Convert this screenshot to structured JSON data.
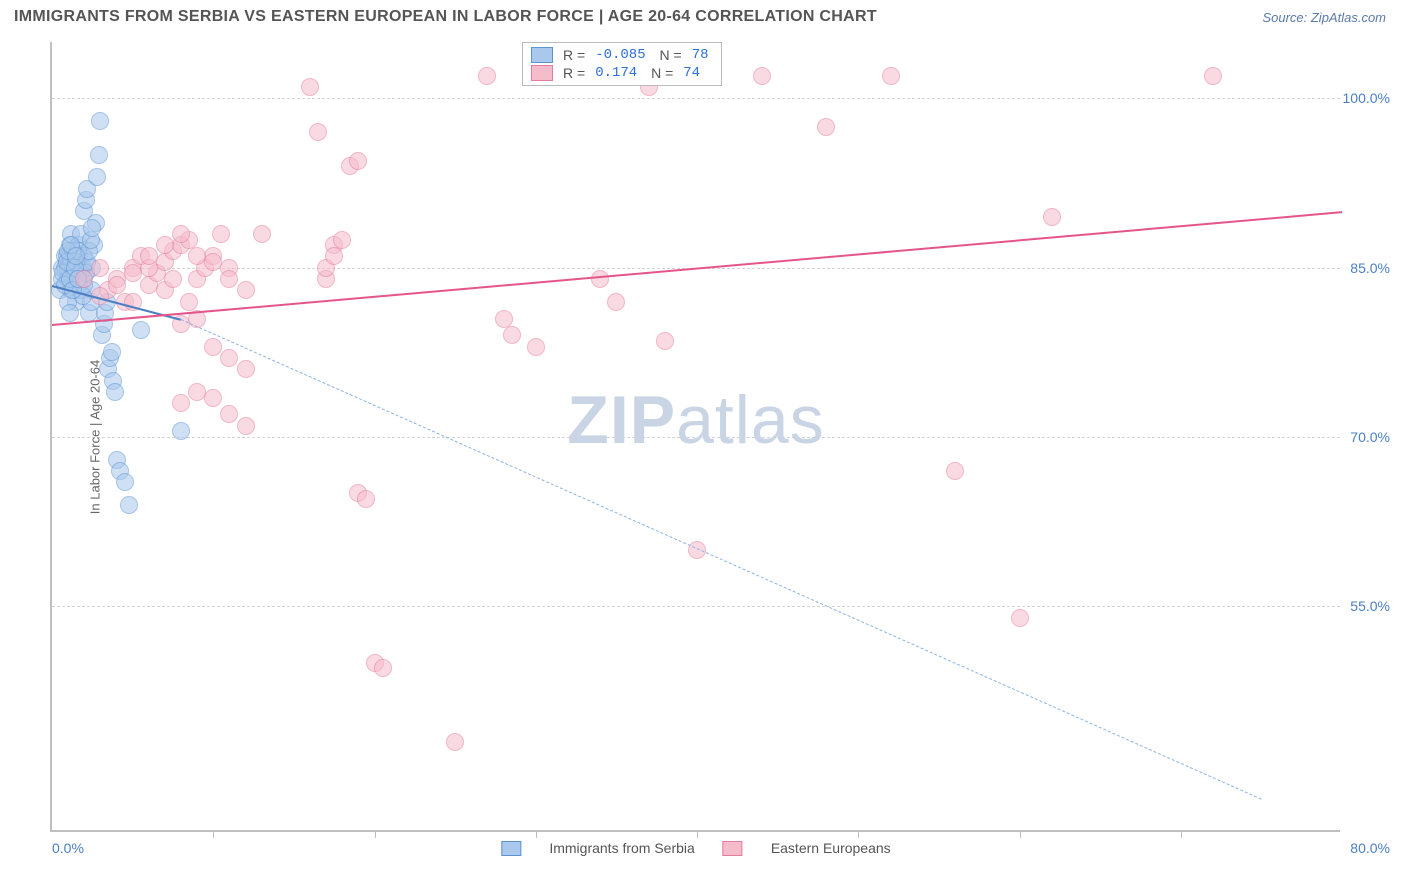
{
  "title": "IMMIGRANTS FROM SERBIA VS EASTERN EUROPEAN IN LABOR FORCE | AGE 20-64 CORRELATION CHART",
  "source": "Source: ZipAtlas.com",
  "watermark_a": "ZIP",
  "watermark_b": "atlas",
  "chart": {
    "type": "scatter",
    "ylabel": "In Labor Force | Age 20-64",
    "xlim": [
      0,
      80
    ],
    "ylim": [
      35,
      105
    ],
    "xlim_labels": [
      "0.0%",
      "80.0%"
    ],
    "yticks": [
      55.0,
      70.0,
      85.0,
      100.0
    ],
    "ytick_labels": [
      "55.0%",
      "70.0%",
      "85.0%",
      "100.0%"
    ],
    "xtick_positions": [
      10,
      20,
      30,
      40,
      50,
      60,
      70
    ],
    "background_color": "#ffffff",
    "grid_color": "#d4d4d4",
    "border_color": "#bfbfbf",
    "point_radius": 9,
    "point_opacity": 0.55,
    "series": [
      {
        "name": "Immigrants from Serbia",
        "color_fill": "#a9c8ec",
        "color_stroke": "#5b93d4",
        "R": "-0.085",
        "N": "78",
        "trend": {
          "x1": 0,
          "y1": 83.5,
          "x2": 8,
          "y2": 80.5,
          "width": 2.5,
          "dashed": false,
          "color": "#4a7fc4"
        },
        "trend_ext": {
          "x1": 8,
          "y1": 80.5,
          "x2": 75,
          "y2": 38,
          "width": 1.5,
          "dashed": true,
          "color": "#8fb2df"
        },
        "points": [
          [
            0.5,
            83
          ],
          [
            0.6,
            84
          ],
          [
            0.6,
            85
          ],
          [
            0.8,
            85
          ],
          [
            0.8,
            86
          ],
          [
            0.9,
            86
          ],
          [
            1.0,
            84
          ],
          [
            1.0,
            85
          ],
          [
            1.1,
            86
          ],
          [
            1.1,
            87
          ],
          [
            1.2,
            88
          ],
          [
            1.2,
            83
          ],
          [
            1.3,
            84
          ],
          [
            1.3,
            85
          ],
          [
            1.4,
            86
          ],
          [
            1.5,
            82
          ],
          [
            1.5,
            84
          ],
          [
            1.6,
            85
          ],
          [
            1.7,
            86
          ],
          [
            1.7,
            87
          ],
          [
            1.8,
            88
          ],
          [
            1.8,
            83
          ],
          [
            1.9,
            84
          ],
          [
            1.9,
            85
          ],
          [
            2.0,
            86
          ],
          [
            2.0,
            90
          ],
          [
            2.1,
            91
          ],
          [
            2.2,
            92
          ],
          [
            2.3,
            81
          ],
          [
            2.4,
            82
          ],
          [
            2.5,
            83
          ],
          [
            2.5,
            85
          ],
          [
            2.6,
            87
          ],
          [
            2.7,
            89
          ],
          [
            2.8,
            93
          ],
          [
            2.9,
            95
          ],
          [
            3.0,
            98
          ],
          [
            3.1,
            79
          ],
          [
            3.2,
            80
          ],
          [
            3.3,
            81
          ],
          [
            3.4,
            82
          ],
          [
            3.5,
            76
          ],
          [
            3.6,
            77
          ],
          [
            3.7,
            77.5
          ],
          [
            3.8,
            75
          ],
          [
            3.9,
            74
          ],
          [
            4.0,
            68
          ],
          [
            4.2,
            67
          ],
          [
            4.5,
            66
          ],
          [
            4.8,
            64
          ],
          [
            1.0,
            82
          ],
          [
            1.1,
            81
          ],
          [
            1.2,
            85.5
          ],
          [
            1.3,
            86.5
          ],
          [
            1.4,
            84.5
          ],
          [
            1.5,
            85.5
          ],
          [
            1.6,
            86.5
          ],
          [
            1.7,
            83.5
          ],
          [
            1.8,
            84.5
          ],
          [
            1.9,
            82.5
          ],
          [
            2.0,
            83.5
          ],
          [
            2.1,
            84.5
          ],
          [
            2.2,
            85.5
          ],
          [
            2.3,
            86.5
          ],
          [
            2.4,
            87.5
          ],
          [
            2.5,
            88.5
          ],
          [
            0.7,
            84.5
          ],
          [
            0.8,
            83.5
          ],
          [
            0.9,
            85.5
          ],
          [
            1.0,
            86.5
          ],
          [
            1.1,
            84
          ],
          [
            1.2,
            87
          ],
          [
            1.3,
            83
          ],
          [
            1.4,
            85
          ],
          [
            1.5,
            86
          ],
          [
            1.6,
            84
          ],
          [
            8.0,
            70.5
          ],
          [
            5.5,
            79.5
          ]
        ]
      },
      {
        "name": "Eastern Europeans",
        "color_fill": "#f5bccc",
        "color_stroke": "#e67ba0",
        "R": "0.174",
        "N": "74",
        "trend": {
          "x1": 0,
          "y1": 80,
          "x2": 80,
          "y2": 90,
          "width": 2.5,
          "dashed": false,
          "color": "#e6558a"
        },
        "points": [
          [
            2,
            84
          ],
          [
            3,
            85
          ],
          [
            3.5,
            83
          ],
          [
            4,
            84
          ],
          [
            4.5,
            82
          ],
          [
            5,
            85
          ],
          [
            5.5,
            86
          ],
          [
            6,
            83.5
          ],
          [
            6.5,
            84.5
          ],
          [
            7,
            85.5
          ],
          [
            7.5,
            86.5
          ],
          [
            8,
            87
          ],
          [
            8.5,
            87.5
          ],
          [
            9,
            84
          ],
          [
            9.5,
            85
          ],
          [
            10,
            86
          ],
          [
            10.5,
            88
          ],
          [
            11,
            85
          ],
          [
            12,
            83
          ],
          [
            13,
            88
          ],
          [
            8,
            80
          ],
          [
            9,
            80.5
          ],
          [
            10,
            78
          ],
          [
            11,
            77
          ],
          [
            12,
            76
          ],
          [
            8,
            73
          ],
          [
            9,
            74
          ],
          [
            10,
            73.5
          ],
          [
            11,
            72
          ],
          [
            12,
            71
          ],
          [
            17,
            84
          ],
          [
            17.5,
            87
          ],
          [
            18,
            87.5
          ],
          [
            18.5,
            94
          ],
          [
            19,
            94.5
          ],
          [
            16,
            101
          ],
          [
            16.5,
            97
          ],
          [
            19,
            65
          ],
          [
            19.5,
            64.5
          ],
          [
            20,
            50
          ],
          [
            20.5,
            49.5
          ],
          [
            25,
            43
          ],
          [
            27,
            102
          ],
          [
            28,
            80.5
          ],
          [
            28.5,
            79
          ],
          [
            30,
            78
          ],
          [
            34,
            84
          ],
          [
            35,
            82
          ],
          [
            37,
            101
          ],
          [
            38,
            78.5
          ],
          [
            40,
            60
          ],
          [
            44,
            102
          ],
          [
            48,
            97.5
          ],
          [
            52,
            102
          ],
          [
            56,
            67
          ],
          [
            60,
            54
          ],
          [
            62,
            89.5
          ],
          [
            72,
            102
          ],
          [
            3,
            82.5
          ],
          [
            4,
            83.5
          ],
          [
            5,
            82
          ],
          [
            6,
            85
          ],
          [
            7,
            83
          ],
          [
            7.5,
            84
          ],
          [
            8.5,
            82
          ],
          [
            9,
            86
          ],
          [
            10,
            85.5
          ],
          [
            11,
            84
          ],
          [
            17,
            85
          ],
          [
            17.5,
            86
          ],
          [
            5,
            84.5
          ],
          [
            6,
            86
          ],
          [
            7,
            87
          ],
          [
            8,
            88
          ]
        ]
      }
    ]
  },
  "legend_bottom": [
    {
      "label": "Immigrants from Serbia",
      "fill": "#a9c8ec",
      "stroke": "#5b93d4"
    },
    {
      "label": "Eastern Europeans",
      "fill": "#f5bccc",
      "stroke": "#e67ba0"
    }
  ]
}
